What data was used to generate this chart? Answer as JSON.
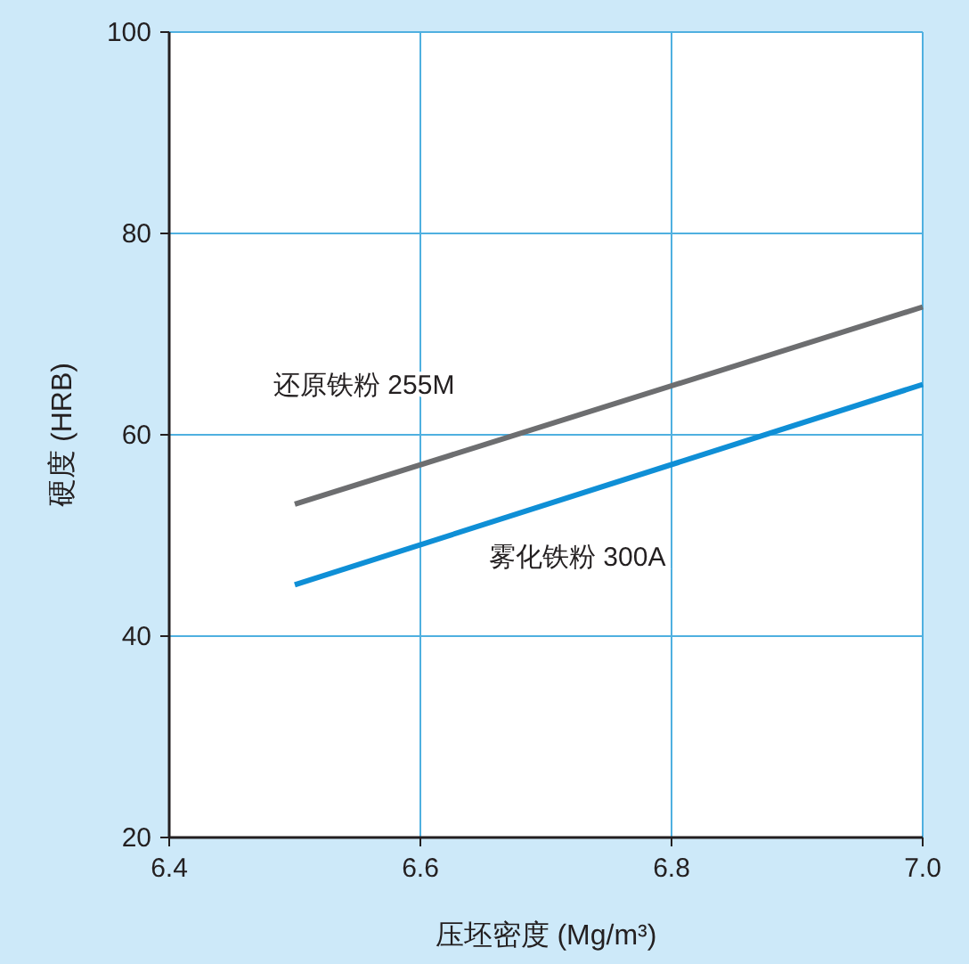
{
  "chart_data": {
    "type": "line",
    "xlabel": "压坯密度 (Mg/m³)",
    "ylabel": "硬度 (HRB)",
    "x": [
      6.5,
      7.0
    ],
    "series": [
      {
        "name": "还原铁粉 255M",
        "color": "#6d6e70",
        "values": [
          53.1,
          72.7
        ]
      },
      {
        "name": "雾化铁粉 300A",
        "color": "#0f8fd6",
        "values": [
          45.1,
          65.0
        ]
      }
    ],
    "xlim": [
      6.4,
      7.0
    ],
    "ylim": [
      20,
      100
    ],
    "xticks": [
      6.4,
      6.6,
      6.8,
      {
        "value": 7.0,
        "label": "7.0"
      }
    ],
    "yticks": [
      20,
      40,
      60,
      80,
      100
    ],
    "grid": true,
    "legend": false,
    "marker": "none",
    "line_style": "solid"
  }
}
